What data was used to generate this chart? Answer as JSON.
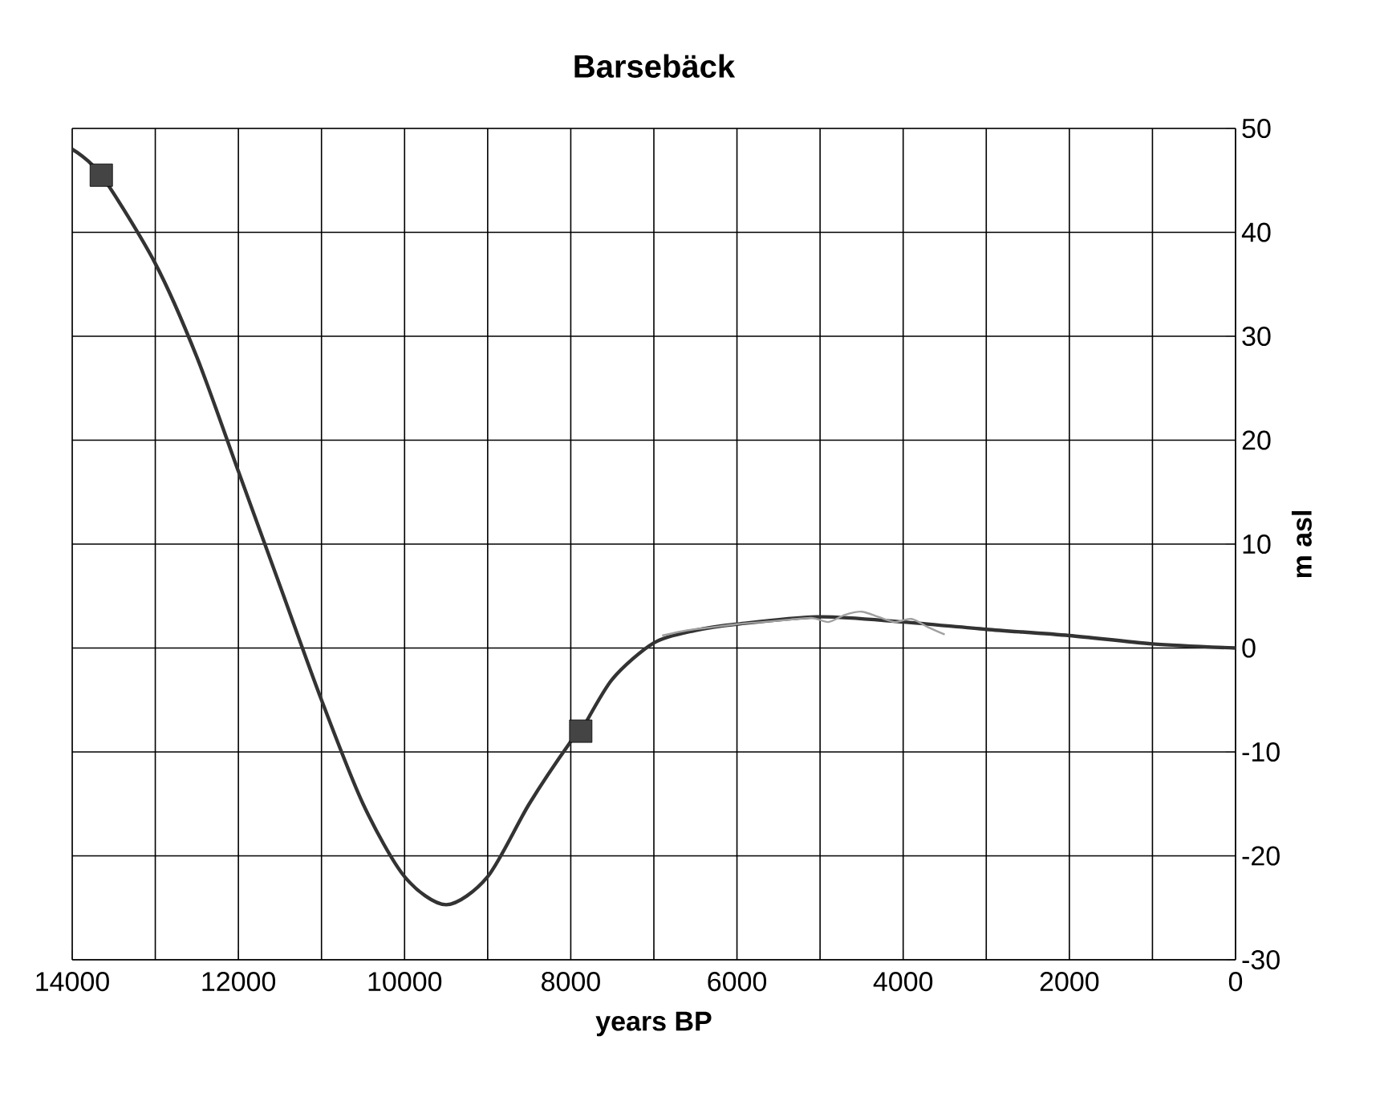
{
  "chart_data": {
    "type": "line",
    "title": "Barsebäck",
    "xlabel": "years BP",
    "ylabel": "m asl",
    "xlim": [
      14000,
      0
    ],
    "xticks": [
      14000,
      {
        "value": 13000,
        "label": null
      },
      12000,
      {
        "value": 11000,
        "label": null
      },
      10000,
      {
        "value": 9000,
        "label": null
      },
      8000,
      {
        "value": 7000,
        "label": null
      },
      6000,
      {
        "value": 5000,
        "label": null
      },
      4000,
      {
        "value": 3000,
        "label": null
      },
      2000,
      {
        "value": 1000,
        "label": null
      },
      0
    ],
    "ylim": [
      -30,
      50
    ],
    "yticks": [
      -30,
      -20,
      -10,
      0,
      10,
      20,
      30,
      40,
      50
    ],
    "grid": true,
    "series": [
      {
        "color": "#333333",
        "marker": "none",
        "x": [
          14000,
          13650,
          13000,
          12500,
          12000,
          11500,
          11000,
          10500,
          10000,
          9500,
          9000,
          8500,
          8000,
          7880,
          7500,
          7000,
          6500,
          6000,
          5000,
          4000,
          3000,
          2000,
          1000,
          0
        ],
        "values": [
          48,
          45.5,
          37,
          28,
          17,
          6,
          -5,
          -15,
          -22,
          -24.7,
          -22,
          -15,
          -9,
          -8,
          -3,
          0.5,
          1.7,
          2.3,
          3,
          2.5,
          1.8,
          1.2,
          0.4,
          0
        ]
      },
      {
        "color": "#a0a0a0",
        "marker": "none",
        "x": [
          6900,
          6600,
          6300,
          6000,
          5700,
          5400,
          5100,
          4900,
          4700,
          4500,
          4300,
          4100,
          3900,
          3700,
          3500
        ],
        "values": [
          1.2,
          1.7,
          2.0,
          2.3,
          2.5,
          2.7,
          2.9,
          2.5,
          3.2,
          3.5,
          3.0,
          2.5,
          2.8,
          2.0,
          1.3
        ]
      },
      {
        "type": "scatter",
        "color": "#444444",
        "marker": "square",
        "x": [
          13650,
          7880
        ],
        "values": [
          45.5,
          -8
        ]
      }
    ]
  }
}
